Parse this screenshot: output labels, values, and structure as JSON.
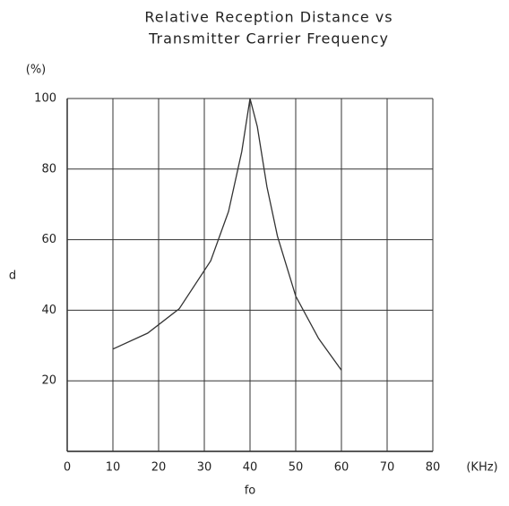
{
  "chart_data": {
    "type": "line",
    "title": [
      "Relative Reception Distance vs",
      "Transmitter Carrier Frequency"
    ],
    "y_unit": "(%)",
    "y_label": "d",
    "x_label": "fo",
    "x_unit": "(KHz)",
    "x": [
      10,
      17.6,
      24.5,
      31.4,
      35.3,
      38.2,
      40,
      41.6,
      43.7,
      46,
      50,
      55,
      60
    ],
    "series": [
      {
        "name": "d",
        "color": "#333333",
        "values": [
          29,
          33.5,
          40.4,
          54,
          68,
          85,
          100,
          92,
          75,
          61,
          44,
          32,
          23
        ]
      }
    ],
    "xlim": [
      0,
      80
    ],
    "xticks": [
      0,
      10,
      20,
      30,
      40,
      50,
      60,
      70,
      80
    ],
    "ylim": [
      0,
      100
    ],
    "yticks": [
      20,
      40,
      60,
      80,
      100
    ],
    "grid": true
  }
}
